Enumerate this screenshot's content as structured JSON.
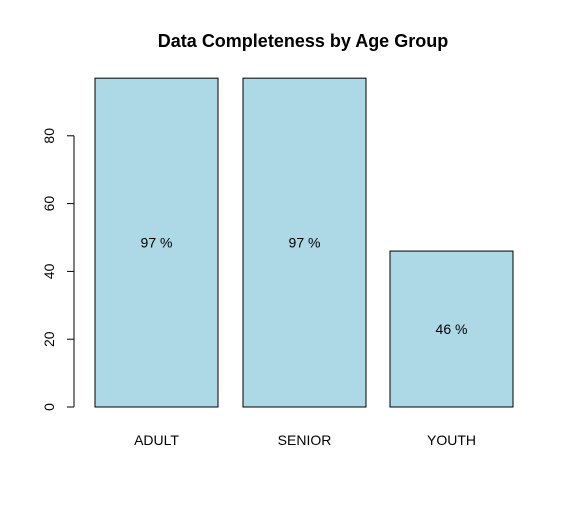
{
  "chart_data": {
    "type": "bar",
    "title": "Data Completeness by Age Group",
    "xlabel": "",
    "ylabel": "",
    "categories": [
      "ADULT",
      "SENIOR",
      "YOUTH"
    ],
    "values": [
      97,
      97,
      46
    ],
    "data_labels": [
      "97 %",
      "97 %",
      "46 %"
    ],
    "yticks": [
      0,
      20,
      40,
      60,
      80
    ],
    "ytick_labels": [
      "0",
      "20",
      "40",
      "60",
      "80"
    ],
    "ylim": [
      0,
      97
    ],
    "grid": false,
    "bar_fill": "#add8e6",
    "bar_stroke": "#000000"
  }
}
